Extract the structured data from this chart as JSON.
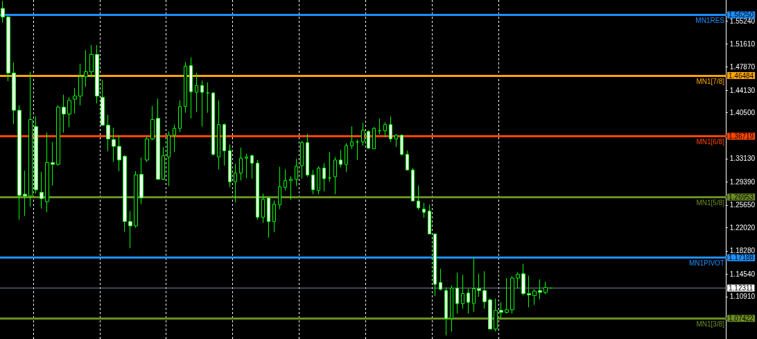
{
  "chart_data": {
    "type": "candlestick",
    "categories": [
      null,
      null,
      null,
      null,
      null,
      null,
      null,
      null,
      null,
      null,
      null,
      null,
      null,
      null,
      null,
      null,
      null,
      null,
      null,
      null,
      null,
      null,
      null,
      null,
      null,
      null,
      null,
      null,
      null,
      null,
      null,
      null,
      null,
      null,
      null,
      null,
      null,
      null,
      null,
      null,
      null,
      null,
      null,
      null,
      null,
      null,
      null,
      null,
      null,
      null,
      null,
      null,
      null,
      null,
      null,
      null,
      null,
      null,
      null,
      null,
      null,
      null,
      null,
      null,
      null,
      null,
      null,
      null,
      null,
      null,
      null,
      null,
      null,
      null,
      null,
      null,
      null,
      null,
      null,
      null,
      null,
      null,
      null,
      null,
      null,
      null,
      null,
      null,
      null,
      null,
      null,
      null,
      null,
      null,
      null,
      null,
      null,
      null,
      null,
      null,
      null,
      null,
      null,
      null,
      null,
      null,
      null,
      null,
      null,
      null,
      null,
      null,
      null,
      null,
      null,
      null,
      null,
      null,
      null,
      null,
      null,
      null,
      null,
      null,
      null,
      null,
      null,
      null,
      null,
      null,
      null
    ],
    "color": "#00ff00",
    "ohlc": [
      [
        1.573,
        1.585,
        1.55,
        1.559
      ],
      [
        1.559,
        1.561,
        1.456,
        1.469
      ],
      [
        1.469,
        1.486,
        1.387,
        1.409
      ],
      [
        1.409,
        1.417,
        1.233,
        1.272
      ],
      [
        1.274,
        1.312,
        1.239,
        1.271
      ],
      [
        1.271,
        1.471,
        1.254,
        1.394
      ],
      [
        1.383,
        1.399,
        1.275,
        1.281
      ],
      [
        1.277,
        1.31,
        1.251,
        1.267
      ],
      [
        1.262,
        1.373,
        1.245,
        1.325
      ],
      [
        1.325,
        1.358,
        1.288,
        1.322
      ],
      [
        1.322,
        1.417,
        1.32,
        1.414
      ],
      [
        1.414,
        1.434,
        1.373,
        1.403
      ],
      [
        1.403,
        1.43,
        1.382,
        1.425
      ],
      [
        1.427,
        1.445,
        1.404,
        1.432
      ],
      [
        1.432,
        1.484,
        1.417,
        1.463
      ],
      [
        1.463,
        1.506,
        1.447,
        1.471
      ],
      [
        1.471,
        1.514,
        1.462,
        1.499
      ],
      [
        1.499,
        1.514,
        1.42,
        1.432
      ],
      [
        1.43,
        1.458,
        1.384,
        1.385
      ],
      [
        1.385,
        1.402,
        1.343,
        1.363
      ],
      [
        1.362,
        1.381,
        1.326,
        1.351
      ],
      [
        1.351,
        1.369,
        1.311,
        1.329
      ],
      [
        1.335,
        1.337,
        1.214,
        1.23
      ],
      [
        1.23,
        1.247,
        1.187,
        1.223
      ],
      [
        1.223,
        1.311,
        1.22,
        1.305
      ],
      [
        1.306,
        1.333,
        1.258,
        1.268
      ],
      [
        1.329,
        1.367,
        1.326,
        1.363
      ],
      [
        1.363,
        1.416,
        1.361,
        1.394
      ],
      [
        1.396,
        1.428,
        1.297,
        1.298
      ],
      [
        1.298,
        1.35,
        1.297,
        1.336
      ],
      [
        1.334,
        1.375,
        1.287,
        1.369
      ],
      [
        1.369,
        1.386,
        1.342,
        1.38
      ],
      [
        1.38,
        1.425,
        1.374,
        1.415
      ],
      [
        1.415,
        1.487,
        1.405,
        1.48
      ],
      [
        1.481,
        1.494,
        1.396,
        1.439
      ],
      [
        1.438,
        1.469,
        1.406,
        1.449
      ],
      [
        1.449,
        1.457,
        1.383,
        1.438
      ],
      [
        1.437,
        1.454,
        1.405,
        1.437
      ],
      [
        1.437,
        1.438,
        1.336,
        1.338
      ],
      [
        1.334,
        1.425,
        1.314,
        1.386
      ],
      [
        1.386,
        1.388,
        1.32,
        1.344
      ],
      [
        1.344,
        1.354,
        1.285,
        1.294
      ],
      [
        1.294,
        1.323,
        1.261,
        1.308
      ],
      [
        1.308,
        1.349,
        1.296,
        1.332
      ],
      [
        1.332,
        1.339,
        1.3,
        1.334
      ],
      [
        1.336,
        1.338,
        1.299,
        1.324
      ],
      [
        1.324,
        1.329,
        1.233,
        1.237
      ],
      [
        1.237,
        1.275,
        1.228,
        1.266
      ],
      [
        1.268,
        1.268,
        1.204,
        1.23
      ],
      [
        1.23,
        1.264,
        1.213,
        1.258
      ],
      [
        1.257,
        1.318,
        1.25,
        1.286
      ],
      [
        1.285,
        1.314,
        1.28,
        1.296
      ],
      [
        1.296,
        1.303,
        1.265,
        1.298
      ],
      [
        1.298,
        1.331,
        1.287,
        1.319
      ],
      [
        1.32,
        1.36,
        1.299,
        1.357
      ],
      [
        1.357,
        1.371,
        1.302,
        1.305
      ],
      [
        1.305,
        1.313,
        1.274,
        1.281
      ],
      [
        1.28,
        1.319,
        1.274,
        1.316
      ],
      [
        1.316,
        1.324,
        1.279,
        1.299
      ],
      [
        1.3,
        1.342,
        1.294,
        1.3
      ],
      [
        1.302,
        1.334,
        1.274,
        1.329
      ],
      [
        1.329,
        1.345,
        1.317,
        1.322
      ],
      [
        1.322,
        1.356,
        1.31,
        1.352
      ],
      [
        1.352,
        1.383,
        1.347,
        1.358
      ],
      [
        1.358,
        1.362,
        1.329,
        1.358
      ],
      [
        1.358,
        1.389,
        1.352,
        1.377
      ],
      [
        1.375,
        1.377,
        1.347,
        1.348
      ],
      [
        1.347,
        1.382,
        1.347,
        1.38
      ],
      [
        1.376,
        1.396,
        1.37,
        1.376
      ],
      [
        1.376,
        1.39,
        1.366,
        1.386
      ],
      [
        1.386,
        1.399,
        1.358,
        1.363
      ],
      [
        1.363,
        1.371,
        1.35,
        1.369
      ],
      [
        1.369,
        1.37,
        1.336,
        1.338
      ],
      [
        1.338,
        1.344,
        1.313,
        1.313
      ],
      [
        1.313,
        1.316,
        1.263,
        1.263
      ],
      [
        1.263,
        1.288,
        1.249,
        1.252
      ],
      [
        1.25,
        1.26,
        1.236,
        1.245
      ],
      [
        1.247,
        1.257,
        1.21,
        1.21
      ],
      [
        1.21,
        1.211,
        1.11,
        1.129
      ],
      [
        1.132,
        1.154,
        1.119,
        1.121
      ],
      [
        1.119,
        1.124,
        1.047,
        1.074
      ],
      [
        1.074,
        1.127,
        1.053,
        1.123
      ],
      [
        1.123,
        1.148,
        1.082,
        1.098
      ],
      [
        1.098,
        1.144,
        1.09,
        1.114
      ],
      [
        1.115,
        1.122,
        1.082,
        1.1
      ],
      [
        1.098,
        1.172,
        1.085,
        1.122
      ],
      [
        1.122,
        1.146,
        1.109,
        1.119
      ],
      [
        1.119,
        1.15,
        1.09,
        1.101
      ],
      [
        1.104,
        1.106,
        1.057,
        1.057
      ],
      [
        1.057,
        1.106,
        1.053,
        1.087
      ],
      [
        1.087,
        1.1,
        1.072,
        1.084
      ],
      [
        1.084,
        1.139,
        1.082,
        1.088
      ],
      [
        1.088,
        1.142,
        1.082,
        1.139
      ],
      [
        1.139,
        1.148,
        1.122,
        1.145
      ],
      [
        1.146,
        1.162,
        1.111,
        1.114
      ],
      [
        1.114,
        1.143,
        1.092,
        1.112
      ],
      [
        1.111,
        1.121,
        1.096,
        1.118
      ],
      [
        1.119,
        1.137,
        1.105,
        1.116
      ],
      [
        1.116,
        1.133,
        1.113,
        1.124
      ],
      [
        1.123,
        1.124,
        1.122,
        1.123
      ],
      null,
      null,
      null,
      null,
      null,
      null,
      null,
      null,
      null,
      null,
      null,
      null,
      null,
      null,
      null,
      null,
      null,
      null,
      null,
      null,
      null,
      null,
      null,
      null,
      null,
      null,
      null,
      null,
      null,
      null,
      null
    ],
    "ylim": [
      1.041,
      1.5865
    ],
    "yticks": [
      {
        "value": 1.5524,
        "label": "1.55240"
      },
      {
        "value": 1.5161,
        "label": "1.51610"
      },
      {
        "value": 1.4787,
        "label": "1.47870"
      },
      {
        "value": 1.4413,
        "label": "1.44130"
      },
      {
        "value": 1.405,
        "label": "1.40500"
      },
      {
        "value": 1.3313,
        "label": "1.33130"
      },
      {
        "value": 1.2939,
        "label": "1.29390"
      },
      {
        "value": 1.2565,
        "label": "1.25650"
      },
      {
        "value": 1.2202,
        "label": "1.22020"
      },
      {
        "value": 1.1828,
        "label": "1.18280"
      },
      {
        "value": 1.1454,
        "label": "1.14540"
      },
      {
        "value": 1.1091,
        "label": "1.10910"
      }
    ],
    "ref_lines": [
      {
        "axis": "y",
        "value": 1.5625,
        "label": "MN1RES",
        "color": "#1e90ff"
      },
      {
        "axis": "y",
        "value": 1.46484,
        "label": "MN1[7/8]",
        "color": "#ffa500"
      },
      {
        "axis": "y",
        "value": 1.36719,
        "label": "MN1[6/8]",
        "color": "#ff4500"
      },
      {
        "axis": "y",
        "value": 1.26953,
        "label": "MN1[5/8]",
        "color": "#6b8e23"
      },
      {
        "axis": "y",
        "value": 1.17188,
        "label": "MN1PIVOT",
        "color": "#1e90ff"
      },
      {
        "axis": "y",
        "value": 1.12311,
        "label": null,
        "color": "#778899"
      },
      {
        "axis": "y",
        "value": 1.07422,
        "label": "MN1[3/8]",
        "color": "#6b8e23"
      }
    ],
    "annotations": [
      "1.56250",
      "1.46484",
      "1.36719",
      "1.26953",
      "1.17188",
      "1.12311",
      "1.07422"
    ],
    "colors": [
      "#ffffff",
      "#ffffff",
      "#ffffff",
      "#ffffff",
      "#ffffff",
      "#000000",
      "#ffffff",
      "#ffffff",
      "#000000",
      "#ffffff",
      "#000000",
      "#ffffff",
      "#000000",
      "#000000",
      "#000000",
      "#000000",
      "#000000",
      "#ffffff",
      "#ffffff",
      "#ffffff",
      "#ffffff",
      "#ffffff",
      "#ffffff",
      "#ffffff",
      "#000000",
      "#ffffff",
      "#000000",
      "#000000",
      "#ffffff",
      "#000000",
      "#000000",
      "#000000",
      "#000000",
      "#000000",
      "#ffffff",
      "#000000",
      "#ffffff",
      "#00ff00",
      "#ffffff",
      "#000000",
      "#ffffff",
      "#ffffff",
      "#000000",
      "#000000",
      "#000000",
      "#ffffff",
      "#ffffff",
      "#000000",
      "#ffffff",
      "#000000",
      "#000000",
      "#000000",
      "#000000",
      "#000000",
      "#000000",
      "#ffffff",
      "#ffffff",
      "#000000",
      "#ffffff",
      "#00ff00",
      "#000000",
      "#ffffff",
      "#000000",
      "#000000",
      "#00ff00",
      "#000000",
      "#ffffff",
      "#000000",
      "#00ff00",
      "#000000",
      "#ffffff",
      "#000000",
      "#ffffff",
      "#ffffff",
      "#ffffff",
      "#ffffff",
      "#ffffff",
      "#ffffff",
      "#ffffff",
      "#ffffff",
      "#ffffff",
      "#000000",
      "#ffffff",
      "#000000",
      "#ffffff",
      "#000000",
      "#ffffff",
      "#ffffff",
      "#ffffff",
      "#000000",
      "#ffffff",
      "#000000",
      "#000000",
      "#000000",
      "#ffffff",
      "#ffffff",
      "#000000",
      "#ffffff",
      "#000000",
      "#00ff00",
      null,
      null,
      null,
      null,
      null,
      null,
      null,
      null,
      null,
      null,
      null,
      null,
      null,
      null,
      null,
      null,
      null,
      null,
      null,
      null,
      null,
      null,
      null,
      null,
      null,
      null,
      null,
      null,
      null,
      null,
      null
    ]
  }
}
